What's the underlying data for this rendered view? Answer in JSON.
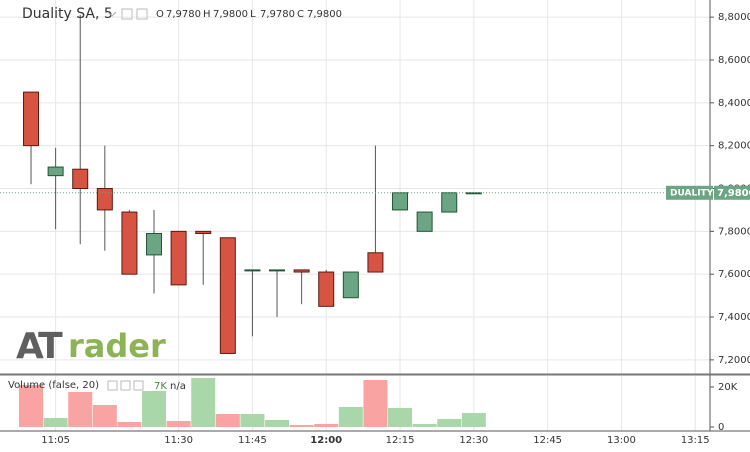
{
  "chart_data": [
    {
      "type": "candlestick",
      "title": "Duality SA, 5",
      "ohlc_legend": [
        {
          "key": "O",
          "text": "7,9780"
        },
        {
          "key": "H",
          "text": "7,9800"
        },
        {
          "key": "L",
          "text": "7,9780"
        },
        {
          "key": "C",
          "text": "7,9800"
        }
      ],
      "x": [
        "11:00",
        "11:05",
        "11:10",
        "11:15",
        "11:20",
        "11:25",
        "11:30",
        "11:35",
        "11:40",
        "11:45",
        "11:50",
        "11:55",
        "12:00",
        "12:05",
        "12:10",
        "12:15",
        "12:20",
        "12:25",
        "12:30"
      ],
      "open": [
        8.45,
        8.06,
        8.09,
        8.0,
        7.89,
        7.69,
        7.8,
        7.8,
        7.77,
        7.62,
        7.62,
        7.62,
        7.61,
        7.49,
        7.7,
        7.9,
        7.8,
        7.89,
        7.978
      ],
      "high": [
        8.45,
        8.19,
        8.81,
        8.2,
        7.9,
        7.9,
        7.8,
        7.8,
        7.77,
        7.62,
        7.62,
        7.62,
        7.62,
        7.61,
        8.2,
        7.98,
        7.89,
        7.98,
        7.98
      ],
      "low": [
        8.02,
        7.81,
        7.74,
        7.71,
        7.6,
        7.51,
        7.55,
        7.55,
        7.23,
        7.31,
        7.4,
        7.46,
        7.45,
        7.49,
        7.61,
        7.9,
        7.8,
        7.89,
        7.978
      ],
      "close": [
        8.2,
        8.1,
        8.0,
        7.9,
        7.6,
        7.79,
        7.55,
        7.79,
        7.23,
        7.62,
        7.62,
        7.61,
        7.45,
        7.61,
        7.61,
        7.98,
        7.89,
        7.98,
        7.98
      ],
      "up_color": "#6ba583",
      "up_border": "#225437",
      "down_color": "#d75442",
      "down_border": "#5b1a13",
      "xlim": [
        "10:54",
        "13:18"
      ],
      "xticks": [
        "11:05",
        "11:30",
        "11:45",
        "12:00",
        "12:15",
        "12:30",
        "12:45",
        "13:00",
        "13:15"
      ],
      "ylim": [
        7.134,
        8.88
      ],
      "yticks": [
        {
          "value": 7.2,
          "label": "7,2000"
        },
        {
          "value": 7.4,
          "label": "7,4000"
        },
        {
          "value": 7.6,
          "label": "7,6000"
        },
        {
          "value": 7.8,
          "label": "7,8000"
        },
        {
          "value": 8.0,
          "label": "8,0000"
        },
        {
          "value": 8.2,
          "label": "8,2000"
        },
        {
          "value": 8.4,
          "label": "8,4000"
        },
        {
          "value": 8.6,
          "label": "8,6000"
        },
        {
          "value": 8.8,
          "label": "8,8000"
        }
      ],
      "last_price": {
        "name": "DUALITY",
        "value": 7.98,
        "label": "7,9800"
      },
      "watermark": [
        "AT",
        "rader"
      ],
      "grid": true
    },
    {
      "type": "bar",
      "title": "Volume (false, 20)",
      "legend_value": "7K",
      "legend_note": "n/a",
      "values": [
        21000,
        4500,
        17500,
        11000,
        2500,
        18000,
        3000,
        24500,
        6500,
        6500,
        3500,
        1000,
        1500,
        10000,
        23500,
        9500,
        1500,
        4000,
        7000
      ],
      "colors": [
        "#f9a3a3",
        "#a9d7a9",
        "#f9a3a3",
        "#f9a3a3",
        "#f9a3a3",
        "#a9d7a9",
        "#f9a3a3",
        "#a9d7a9",
        "#f9a3a3",
        "#a9d7a9",
        "#a9d7a9",
        "#f9a3a3",
        "#f9a3a3",
        "#a9d7a9",
        "#f9a3a3",
        "#a9d7a9",
        "#a9d7a9",
        "#a9d7a9",
        "#a9d7a9"
      ],
      "ylim": [
        0,
        26000
      ],
      "yticks": [
        0,
        {
          "value": 20000,
          "label": "20K"
        }
      ],
      "grid": true
    }
  ]
}
